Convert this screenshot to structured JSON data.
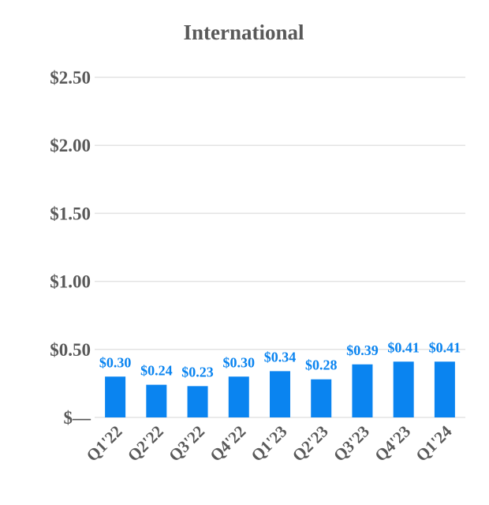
{
  "chart_data": {
    "type": "bar",
    "title": "International",
    "categories": [
      "Q1'22",
      "Q2'22",
      "Q3'22",
      "Q4'22",
      "Q1'23",
      "Q2'23",
      "Q3'23",
      "Q4'23",
      "Q1'24"
    ],
    "values": [
      0.3,
      0.24,
      0.23,
      0.3,
      0.34,
      0.28,
      0.39,
      0.41,
      0.41
    ],
    "data_labels": [
      "$0.30",
      "$0.24",
      "$0.23",
      "$0.30",
      "$0.34",
      "$0.28",
      "$0.39",
      "$0.41",
      "$0.41"
    ],
    "y_ticks": [
      {
        "value": 0,
        "label": "$—"
      },
      {
        "value": 0.5,
        "label": "$0.50"
      },
      {
        "value": 1.0,
        "label": "$1.00"
      },
      {
        "value": 1.5,
        "label": "$1.50"
      },
      {
        "value": 2.0,
        "label": "$2.00"
      },
      {
        "value": 2.5,
        "label": "$2.50"
      }
    ],
    "ylim": [
      0,
      2.5
    ],
    "grid": true,
    "legend": "none",
    "colors": {
      "bar": "#0a84f0",
      "label": "#0a84f0",
      "text": "#595959",
      "grid": "#e3e3e3"
    }
  }
}
